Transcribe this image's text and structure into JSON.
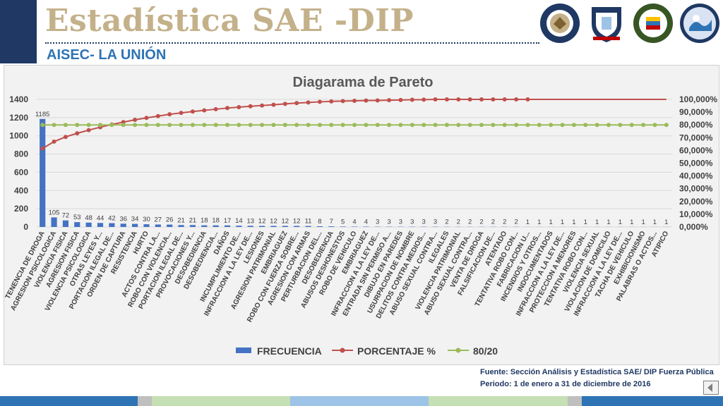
{
  "header": {
    "title": "Estadística SAE -DIP",
    "subtitle": "AISEC- LA UNIÓN",
    "logos": [
      {
        "icon": "us-embassy-seal-icon",
        "text": "UNITED STATES OF AMERICA EMBASSY"
      },
      {
        "icon": "fuerza-publica-shield-icon",
        "text": "FUERZA PÚBLICA"
      },
      {
        "icon": "police-crest-icon",
        "text": ""
      },
      {
        "icon": "pinl-emblem-icon",
        "text": ""
      }
    ]
  },
  "chart_data": {
    "type": "bar",
    "title": "Diagarama de Pareto",
    "categories": [
      "TENENCIA DE DROGA",
      "AGRESION PSICOLOGICA",
      "VIOLENCIA FISICA",
      "AGRESION FISICA",
      "VIOLENCIA PSICOLOGICA",
      "OTRAS LEYES Y...",
      "PORTACION ILEGAL DE...",
      "ORDEN DE CAPTURA",
      "RESISTENCIA",
      "HURTO",
      "ACTOS CONTRA LA...",
      "ROBO CON VIOLENCIA...",
      "PORTACION ILEGAL DE...",
      "PROVOCACIONES Y...",
      "DESOBEDIENCIA",
      "DESOBEDIENCIA...",
      "DAÑOS",
      "INCUMPLIMIENTO DE...",
      "INFRACCION A LA LEY DE...",
      "LESIONES",
      "AGRESION PATRIMONIAL",
      "EMBRIAGUEZ",
      "ROBO CON FUERZA SOBRE...",
      "AGRESION CON ARMAS",
      "PERTURBACION DEL...",
      "DESOBEDIENCIA",
      "ABUSOS DESHONESTOS",
      "ROBO DE VEHICULO",
      "EMBRIAGUEZ",
      "INFRACCION A LA LEY DE...",
      "ENTRADA SIN PERMISO A...",
      "DIBUJO EN PAREDES",
      "USURPACION DE NOMBRE",
      "DELITOS CONTRA MEDIOS...",
      "ABUSO SEXUAL CONTRA...",
      "ILEGALES",
      "VIOLENCIA PATRIMONIAL",
      "ABUSO SEXUAL CONTRA...",
      "VENTA DE DROGA",
      "FALSIFICACION DE...",
      "ATENTADO",
      "TENTATIVA ROBO CON...",
      "FABRICACION U...",
      "INCENDIOS Y OTROS...",
      "INDOCUMENTADOS",
      "INFRACCION A LA LEY DE...",
      "PROTECCION A MENORES",
      "TENTATIVA ROBO CON...",
      "VIOLENCIA SEXUAL",
      "VIOLACION DE DOMICILIO",
      "INFRACCION A LA LEY DE...",
      "TACHA DE VEHICULO",
      "EXHIBICIONISMO",
      "PALABRAS O ACTOS...",
      "ATIPICO"
    ],
    "series": [
      {
        "name": "FRECUENCIA",
        "axis": "left",
        "color": "#4472c4",
        "values": [
          1185,
          105,
          72,
          53,
          48,
          44,
          42,
          36,
          34,
          30,
          27,
          26,
          21,
          21,
          18,
          18,
          17,
          14,
          13,
          12,
          12,
          12,
          12,
          11,
          8,
          7,
          5,
          4,
          4,
          3,
          3,
          3,
          3,
          3,
          3,
          2,
          2,
          2,
          2,
          2,
          2,
          2,
          1,
          1,
          1,
          1,
          1,
          1,
          1,
          1,
          1,
          1,
          1,
          1,
          1
        ]
      },
      {
        "name": "PORCENTAJE %",
        "axis": "right",
        "color": "#c0504d",
        "values": [
          61.5,
          66.9,
          70.6,
          73.4,
          75.9,
          78.2,
          80.3,
          82.2,
          84.0,
          85.5,
          86.9,
          88.3,
          89.4,
          90.5,
          91.4,
          92.3,
          93.2,
          93.9,
          94.6,
          95.2,
          95.8,
          96.5,
          97.1,
          97.6,
          98.1,
          98.4,
          98.7,
          98.9,
          99.1,
          99.2,
          99.4,
          99.5,
          99.7,
          99.8,
          100.0,
          100.0,
          100.0,
          100.0,
          100.0,
          100.0,
          100.0,
          100.0,
          100.0,
          100.0,
          100.0,
          100.0,
          100.0,
          100.0,
          100.0,
          100.0,
          100.0,
          100.0,
          100.0,
          100.0,
          100.0
        ]
      },
      {
        "name": "80/20",
        "axis": "right",
        "color": "#9bbb59",
        "values": [
          80,
          80,
          80,
          80,
          80,
          80,
          80,
          80,
          80,
          80,
          80,
          80,
          80,
          80,
          80,
          80,
          80,
          80,
          80,
          80,
          80,
          80,
          80,
          80,
          80,
          80,
          80,
          80,
          80,
          80,
          80,
          80,
          80,
          80,
          80,
          80,
          80,
          80,
          80,
          80,
          80,
          80,
          80,
          80,
          80,
          80,
          80,
          80,
          80,
          80,
          80,
          80,
          80,
          80,
          80
        ]
      }
    ],
    "ylim": [
      0,
      1400
    ],
    "y_ticks": [
      "0",
      "200",
      "400",
      "600",
      "800",
      "1000",
      "1200",
      "1400"
    ],
    "y2lim": [
      0,
      100
    ],
    "y2_ticks": [
      "0,000%",
      "10,000%",
      "20,000%",
      "30,000%",
      "40,000%",
      "50,000%",
      "60,000%",
      "70,000%",
      "80,000%",
      "90,000%",
      "100,000%"
    ],
    "legend_position": "bottom",
    "grid": true
  },
  "footer": {
    "source": "Fuente: Sección Análisis y Estadística SAE/ DIP Fuerza Pública",
    "period": "Periodo: 1 de enero a 31 de diciembre de 2016",
    "stripe_colors": [
      "#2e74b5",
      "#bfbfbf",
      "#c5e0b4",
      "#9dc3e6",
      "#c5e0b4",
      "#bfbfbf",
      "#2e74b5"
    ]
  }
}
